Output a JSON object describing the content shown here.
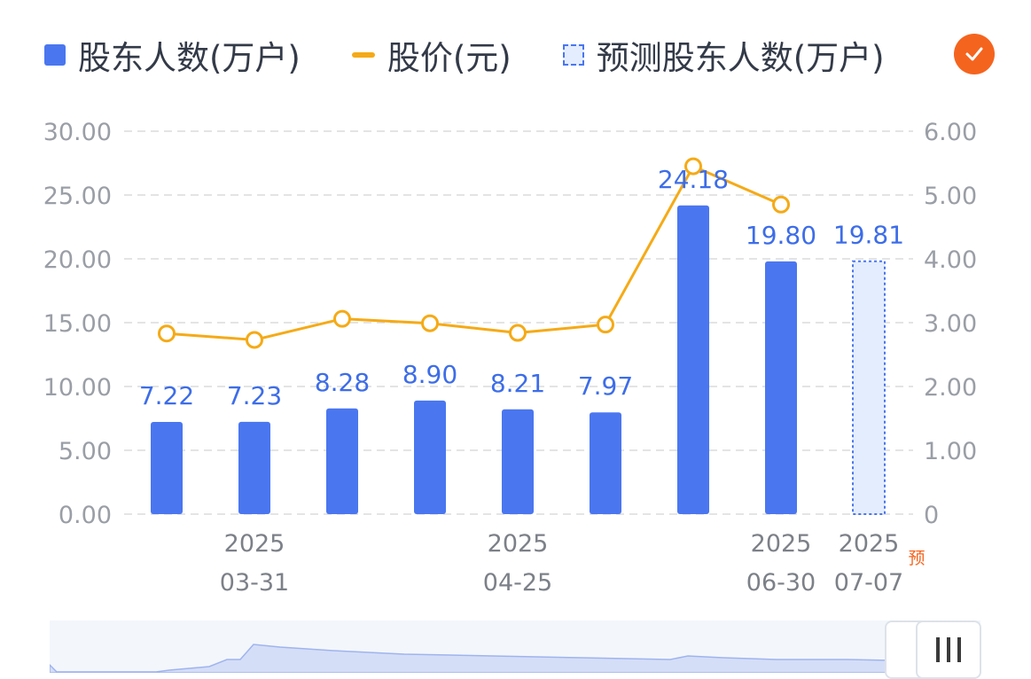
{
  "legend": {
    "holders_label": "股东人数(万户)",
    "price_label": "股价(元)",
    "forecast_label": "预测股东人数(万户)"
  },
  "toggle": {
    "icon": "check-icon"
  },
  "colors": {
    "bar": "#4a76f0",
    "line": "#f5aa16",
    "forecast_fill": "#e3edfd",
    "toggle": "#f5641e"
  },
  "chart_data": {
    "type": "bar",
    "categories": [
      "",
      "2025 03-31",
      "",
      "",
      "2025 04-25",
      "",
      "",
      "2025 06-30",
      "2025 07-07"
    ],
    "x_tick_labels": [
      {
        "index": 1,
        "year": "2025",
        "date": "03-31"
      },
      {
        "index": 4,
        "year": "2025",
        "date": "04-25"
      },
      {
        "index": 7,
        "year": "2025",
        "date": "06-30"
      },
      {
        "index": 8,
        "year": "2025",
        "date": "07-07",
        "forecast_marker": "预"
      }
    ],
    "series": [
      {
        "name": "股东人数(万户)",
        "type": "bar",
        "axis": "left",
        "values": [
          7.22,
          7.23,
          8.28,
          8.9,
          8.21,
          7.97,
          24.18,
          19.8,
          null
        ],
        "labels": [
          "7.22",
          "7.23",
          "8.28",
          "8.90",
          "8.21",
          "7.97",
          "24.18",
          "19.80",
          ""
        ]
      },
      {
        "name": "预测股东人数(万户)",
        "type": "bar",
        "axis": "left",
        "style": "dashed",
        "values": [
          null,
          null,
          null,
          null,
          null,
          null,
          null,
          null,
          19.81
        ],
        "labels": [
          "",
          "",
          "",
          "",
          "",
          "",
          "",
          "",
          "19.81"
        ]
      },
      {
        "name": "股价(元)",
        "type": "line",
        "axis": "right",
        "values": [
          2.83,
          2.73,
          3.06,
          2.99,
          2.84,
          2.97,
          5.45,
          4.85,
          null
        ]
      }
    ],
    "y_left": {
      "ylim": [
        0,
        30
      ],
      "ticks": [
        "0.00",
        "5.00",
        "10.00",
        "15.00",
        "20.00",
        "25.00",
        "30.00"
      ]
    },
    "y_right": {
      "ylim": [
        0,
        6
      ],
      "ticks": [
        "0",
        "1.00",
        "2.00",
        "3.00",
        "4.00",
        "5.00",
        "6.00"
      ]
    },
    "grid": "dashed-horizontal",
    "legend_position": "top"
  },
  "navigator": {
    "handle_icon": "drag-handle-icon"
  }
}
